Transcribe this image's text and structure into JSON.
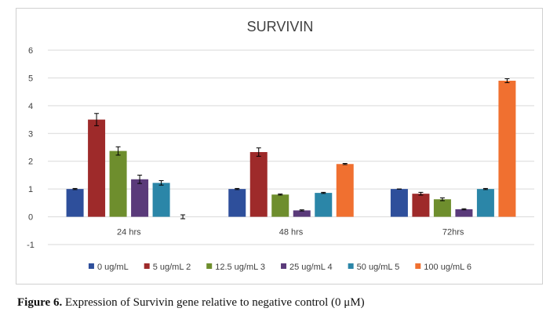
{
  "chart_data": {
    "type": "bar",
    "title": "SURVIVIN",
    "xlabel": "",
    "ylabel": "",
    "ylim": [
      -1,
      6
    ],
    "yticks": [
      -1,
      0,
      1,
      2,
      3,
      4,
      5,
      6
    ],
    "grid": true,
    "legend_position": "bottom",
    "categories": [
      "24 hrs",
      "48 hrs",
      "72hrs"
    ],
    "series": [
      {
        "name": "0 ug/mL",
        "color": "#2E4F9B",
        "values": [
          1.0,
          1.0,
          1.0
        ],
        "errors": [
          0.02,
          0.02,
          0.0
        ]
      },
      {
        "name": "5 ug/mL 2",
        "color": "#9E2A2A",
        "values": [
          3.5,
          2.33,
          0.83
        ],
        "errors": [
          0.22,
          0.15,
          0.05
        ]
      },
      {
        "name": "12.5 ug/mL 3",
        "color": "#6E8E2D",
        "values": [
          2.37,
          0.8,
          0.63
        ],
        "errors": [
          0.15,
          0.02,
          0.05
        ]
      },
      {
        "name": "25 ug/mL 4",
        "color": "#5A3A7A",
        "values": [
          1.35,
          0.23,
          0.27
        ],
        "errors": [
          0.15,
          0.02,
          0.02
        ]
      },
      {
        "name": "50 ug/mL 5",
        "color": "#2B86A8",
        "values": [
          1.22,
          0.86,
          1.0
        ],
        "errors": [
          0.08,
          0.02,
          0.02
        ]
      },
      {
        "name": "100 ug/mL 6",
        "color": "#F07030",
        "values": [
          0.0,
          1.9,
          4.9
        ],
        "errors": [
          0.07,
          0.02,
          0.07
        ]
      }
    ]
  },
  "caption": {
    "label": "Figure 6.",
    "text": " Expression of Survivin gene relative to negative control (0 μM)"
  },
  "colors": {
    "grid": "#d9d9d9",
    "text": "#404040",
    "error_bar": "#000000"
  }
}
